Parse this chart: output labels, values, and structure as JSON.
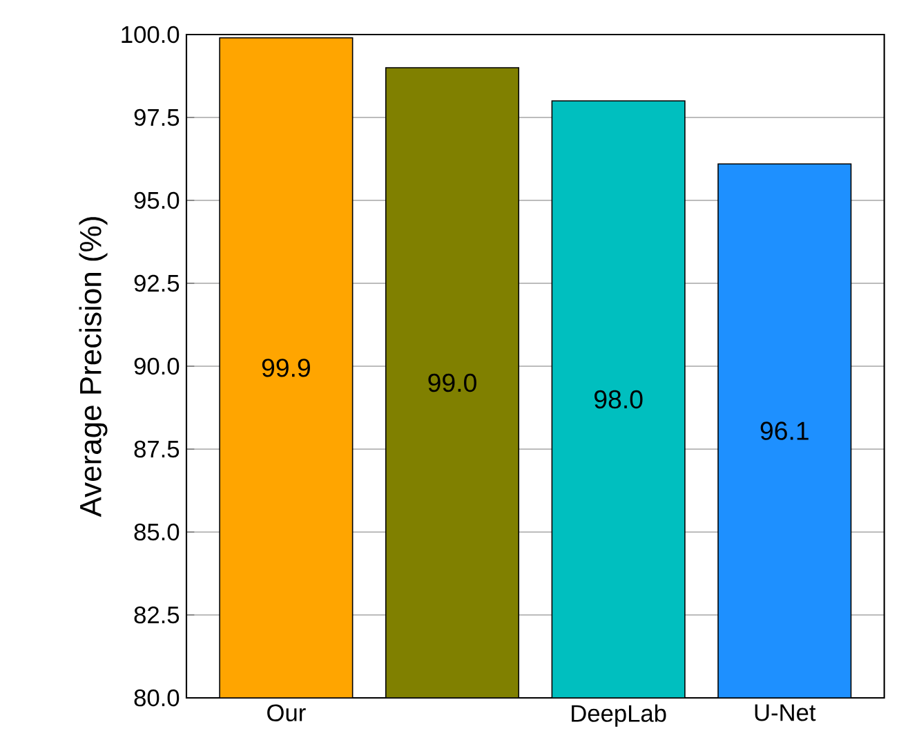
{
  "chart_data": {
    "type": "bar",
    "ylabel": "Average Precision (%)",
    "categories": [
      "Our",
      null,
      "DeepLab",
      "U-Net"
    ],
    "values": [
      99.9,
      99.0,
      98.0,
      96.1
    ],
    "colors": [
      "#ffa500",
      "#808000",
      "#00bfbf",
      "#1e90ff"
    ],
    "value_labels": [
      "99.9",
      "99.0",
      "98.0",
      "96.1"
    ],
    "ylim": [
      80,
      100
    ],
    "yticks": [
      {
        "value": 80,
        "label": "80.0"
      },
      {
        "value": 82.5,
        "label": "82.5"
      },
      {
        "value": 85,
        "label": "85.0"
      },
      {
        "value": 87.5,
        "label": "87.5"
      },
      {
        "value": 90,
        "label": "90.0"
      },
      {
        "value": 92.5,
        "label": "92.5"
      },
      {
        "value": 95,
        "label": "95.0"
      },
      {
        "value": 97.5,
        "label": "97.5"
      },
      {
        "value": 100,
        "label": "100.0"
      }
    ],
    "grid": "y"
  }
}
